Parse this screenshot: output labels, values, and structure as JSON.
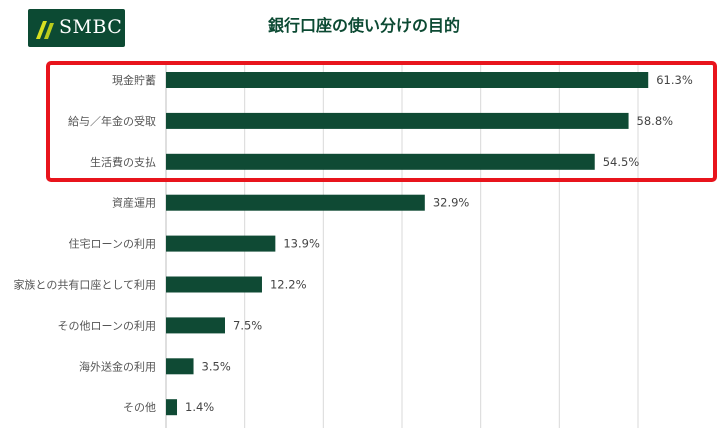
{
  "logo": {
    "text": "SMBC",
    "color": "#0c4a33"
  },
  "title": "銀行口座の使い分けの目的",
  "chart_data": {
    "type": "bar",
    "orientation": "horizontal",
    "title": "銀行口座の使い分けの目的",
    "categories": [
      "現金貯蓄",
      "給与／年金の受取",
      "生活費の支払",
      "資産運用",
      "住宅ローンの利用",
      "家族との共有口座として利用",
      "その他ローンの利用",
      "海外送金の利用",
      "その他"
    ],
    "values": [
      61.3,
      58.8,
      54.5,
      32.9,
      13.9,
      12.2,
      7.5,
      3.5,
      1.4
    ],
    "value_labels": [
      "61.3%",
      "58.8%",
      "54.5%",
      "32.9%",
      "13.9%",
      "12.2%",
      "7.5%",
      "3.5%",
      "1.4%"
    ],
    "unit": "%",
    "xlim": [
      0,
      60
    ],
    "grid": true,
    "bar_color": "#0f4a34",
    "highlight": {
      "categories": [
        "現金貯蓄",
        "給与／年金の受取",
        "生活費の支払"
      ],
      "color": "#e8141c"
    }
  }
}
